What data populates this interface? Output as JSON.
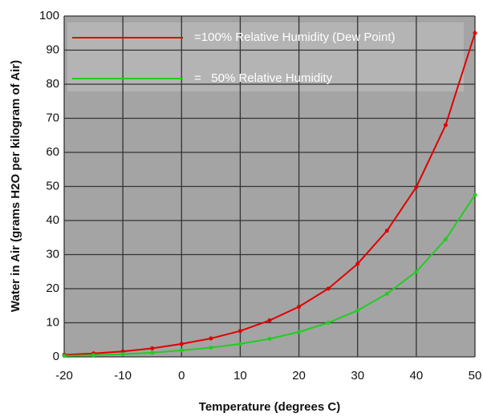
{
  "chart_data": {
    "type": "line",
    "xlabel": "Temperature (degrees C)",
    "ylabel": "Water in Air (grams H2O per kilogram of Air)",
    "x": [
      -20,
      -15,
      -10,
      -5,
      0,
      5,
      10,
      15,
      20,
      25,
      30,
      35,
      40,
      45,
      50
    ],
    "series": [
      {
        "name": "=100% Relative Humidity (Dew Point)",
        "color": "#e00000",
        "values": [
          0.6,
          1.0,
          1.6,
          2.5,
          3.8,
          5.4,
          7.6,
          10.7,
          14.7,
          20.0,
          27.3,
          37.0,
          49.8,
          68.0,
          95.0
        ]
      },
      {
        "name": "=   50% Relative Humidity",
        "color": "#22cc22",
        "values": [
          0.3,
          0.5,
          0.8,
          1.2,
          1.9,
          2.7,
          3.8,
          5.3,
          7.3,
          10.0,
          13.6,
          18.5,
          25.0,
          34.5,
          47.5
        ]
      }
    ],
    "xlim": [
      -20,
      50
    ],
    "xticks": [
      -20,
      -10,
      0,
      10,
      20,
      30,
      40,
      50
    ],
    "ylim": [
      0,
      100
    ],
    "yticks": [
      0,
      10,
      20,
      30,
      40,
      50,
      60,
      70,
      80,
      90,
      100
    ],
    "grid": true
  }
}
